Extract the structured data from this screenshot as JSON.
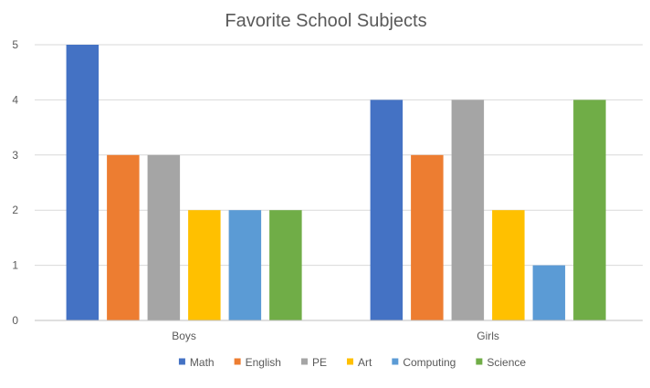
{
  "chart_data": {
    "type": "bar",
    "title": "Favorite School Subjects",
    "xlabel": "",
    "ylabel": "",
    "categories": [
      "Boys",
      "Girls"
    ],
    "ylim": [
      0,
      5
    ],
    "y_ticks": [
      "0",
      "1",
      "2",
      "3",
      "4",
      "5"
    ],
    "grid": true,
    "legend_position": "bottom",
    "series": [
      {
        "name": "Math",
        "color": "#4472C4",
        "values": [
          5,
          4
        ]
      },
      {
        "name": "English",
        "color": "#ED7D31",
        "values": [
          3,
          3
        ]
      },
      {
        "name": "PE",
        "color": "#A5A5A5",
        "values": [
          3,
          4
        ]
      },
      {
        "name": "Art",
        "color": "#FFC000",
        "values": [
          2,
          2
        ]
      },
      {
        "name": "Computing",
        "color": "#5B9BD5",
        "values": [
          2,
          1
        ]
      },
      {
        "name": "Science",
        "color": "#70AD47",
        "values": [
          2,
          4
        ]
      }
    ]
  }
}
